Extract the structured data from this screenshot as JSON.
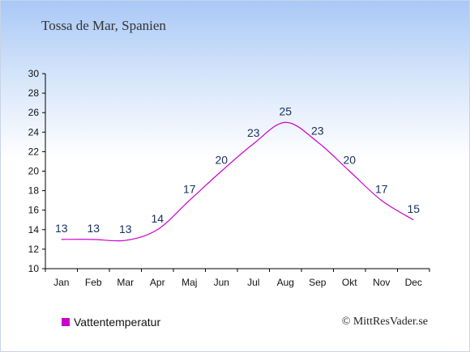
{
  "title": "Tossa de Mar, Spanien",
  "credit": "© MittResVader.se",
  "colors": {
    "series": "#cc00cc",
    "label": "#1a3060"
  },
  "chart_data": {
    "type": "line",
    "categories": [
      "Jan",
      "Feb",
      "Mar",
      "Apr",
      "Maj",
      "Jun",
      "Jul",
      "Aug",
      "Sep",
      "Okt",
      "Nov",
      "Dec"
    ],
    "series": [
      {
        "name": "Vattentemperatur",
        "values": [
          13,
          13,
          12.9,
          14,
          17,
          20,
          22.8,
          25,
          23,
          20,
          17,
          15
        ],
        "labels": [
          "13",
          "13",
          "13",
          "14",
          "17",
          "20",
          "23",
          "25",
          "23",
          "20",
          "17",
          "15"
        ]
      }
    ],
    "ylim": [
      10,
      30
    ],
    "yticks": [
      10,
      12,
      14,
      16,
      18,
      20,
      22,
      24,
      26,
      28,
      30
    ],
    "legend": "bottom-left",
    "grid": false
  }
}
